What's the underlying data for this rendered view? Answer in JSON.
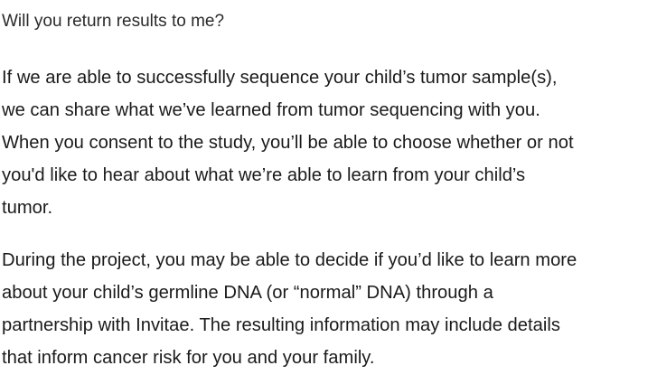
{
  "faq": {
    "question": "Will you return results to me?",
    "paragraphs": [
      {
        "lines": [
          "If we are able to successfully sequence your child’s tumor sample(s),",
          "we can share what we’ve learned from tumor sequencing with you.",
          "When you consent to the study, you’ll be able to choose whether or not",
          "you'd like to hear about what we’re able to learn from your child’s",
          "tumor."
        ]
      },
      {
        "lines": [
          "During the project, you may be able to decide if you’d like to learn more",
          "about your child’s germline DNA (or “normal” DNA) through a",
          "partnership with Invitae. The resulting information may include details",
          "that inform cancer risk for you and your family."
        ]
      }
    ]
  }
}
